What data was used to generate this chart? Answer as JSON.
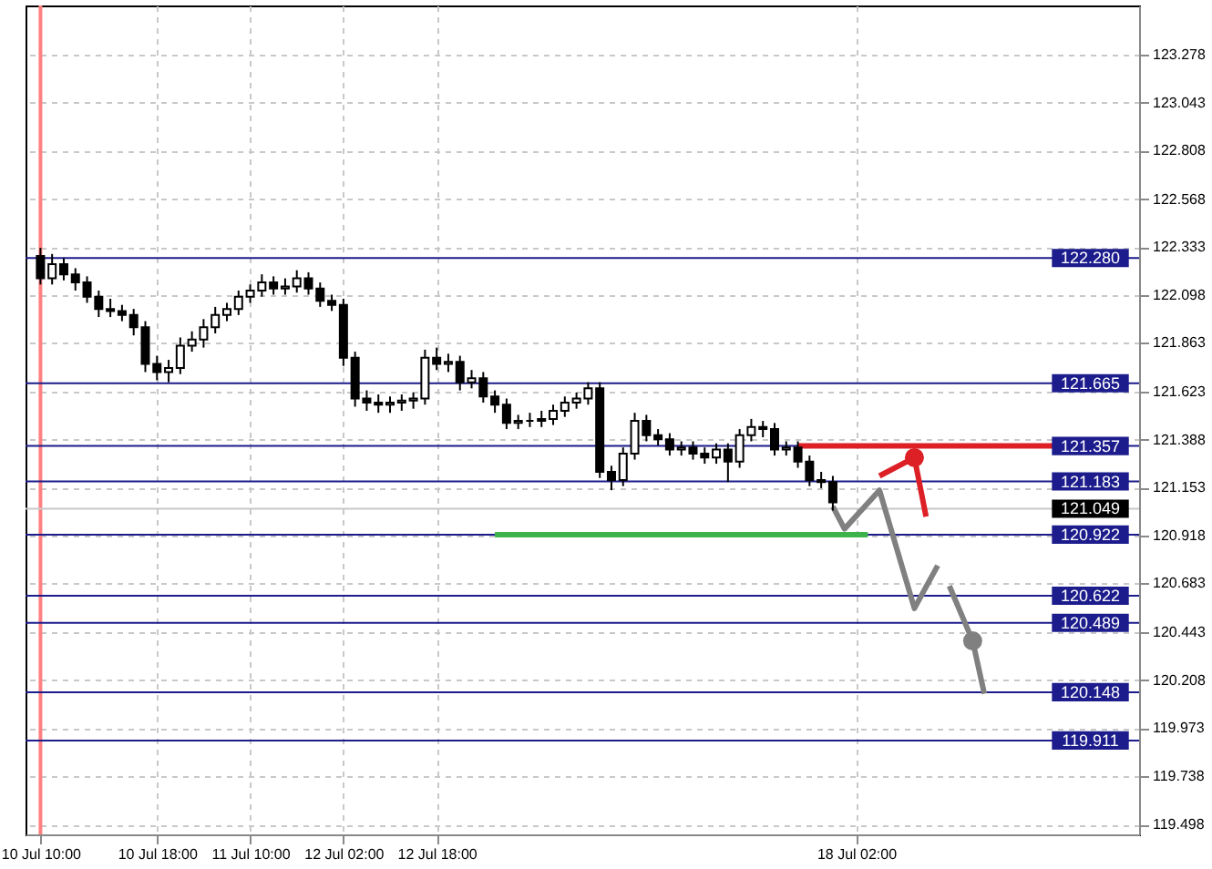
{
  "chart_data": {
    "type": "candlestick",
    "color": "#000000",
    "categories": [
      "10 Jul 10:00",
      null,
      null,
      null,
      null,
      null,
      null,
      null,
      null,
      null,
      "10 Jul 18:00",
      null,
      null,
      null,
      null,
      null,
      null,
      null,
      "11 Jul 10:00",
      null,
      null,
      null,
      null,
      null,
      null,
      null,
      "12 Jul 02:00",
      null,
      null,
      null,
      null,
      null,
      null,
      null,
      "12 Jul 18:00",
      null,
      null,
      null,
      null,
      null,
      null,
      null,
      null,
      null,
      null,
      null,
      null,
      null,
      null,
      null,
      null,
      null,
      null,
      null,
      null,
      null,
      null,
      null,
      null,
      null,
      null,
      null,
      null,
      null,
      null,
      null,
      null,
      null,
      null,
      null,
      "18 Jul 02:00",
      null,
      null,
      null,
      null,
      null,
      null,
      null,
      null,
      null,
      null,
      null,
      null,
      null,
      null,
      null,
      null,
      null,
      null,
      null,
      null,
      null,
      null,
      null
    ],
    "ohlc": [
      [
        122.29,
        122.33,
        122.15,
        122.18
      ],
      [
        122.18,
        122.3,
        122.15,
        122.25
      ],
      [
        122.25,
        122.28,
        122.17,
        122.2
      ],
      [
        122.2,
        122.23,
        122.12,
        122.16
      ],
      [
        122.16,
        122.19,
        122.06,
        122.09
      ],
      [
        122.09,
        122.12,
        121.99,
        122.03
      ],
      [
        122.03,
        122.08,
        121.99,
        122.02
      ],
      [
        122.02,
        122.05,
        121.97,
        122.0
      ],
      [
        122.0,
        122.03,
        121.9,
        121.94
      ],
      [
        121.94,
        121.97,
        121.72,
        121.76
      ],
      [
        121.76,
        121.8,
        121.68,
        121.72
      ],
      [
        121.72,
        121.78,
        121.67,
        121.74
      ],
      [
        121.74,
        121.89,
        121.71,
        121.85
      ],
      [
        121.85,
        121.92,
        121.82,
        121.88
      ],
      [
        121.88,
        121.98,
        121.84,
        121.94
      ],
      [
        121.94,
        122.04,
        121.91,
        122.0
      ],
      [
        122.0,
        122.06,
        121.97,
        122.03
      ],
      [
        122.03,
        122.12,
        122.0,
        122.09
      ],
      [
        122.09,
        122.15,
        122.06,
        122.12
      ],
      [
        122.12,
        122.2,
        122.09,
        122.16
      ],
      [
        122.16,
        122.19,
        122.1,
        122.13
      ],
      [
        122.13,
        122.18,
        122.1,
        122.14
      ],
      [
        122.14,
        122.22,
        122.11,
        122.18
      ],
      [
        122.18,
        122.21,
        122.1,
        122.13
      ],
      [
        122.13,
        122.16,
        122.04,
        122.07
      ],
      [
        122.07,
        122.1,
        122.02,
        122.05
      ],
      [
        122.05,
        122.08,
        121.75,
        121.79
      ],
      [
        121.79,
        121.82,
        121.55,
        121.59
      ],
      [
        121.59,
        121.63,
        121.53,
        121.57
      ],
      [
        121.57,
        121.61,
        121.52,
        121.56
      ],
      [
        121.56,
        121.6,
        121.52,
        121.57
      ],
      [
        121.57,
        121.61,
        121.53,
        121.58
      ],
      [
        121.58,
        121.62,
        121.54,
        121.59
      ],
      [
        121.59,
        121.83,
        121.56,
        121.79
      ],
      [
        121.79,
        121.84,
        121.73,
        121.76
      ],
      [
        121.76,
        121.81,
        121.72,
        121.77
      ],
      [
        121.77,
        121.8,
        121.63,
        121.67
      ],
      [
        121.67,
        121.73,
        121.64,
        121.69
      ],
      [
        121.69,
        121.72,
        121.57,
        121.6
      ],
      [
        121.6,
        121.63,
        121.52,
        121.56
      ],
      [
        121.56,
        121.59,
        121.44,
        121.47
      ],
      [
        121.47,
        121.51,
        121.44,
        121.48
      ],
      [
        121.48,
        121.52,
        121.45,
        121.48
      ],
      [
        121.48,
        121.53,
        121.45,
        121.49
      ],
      [
        121.49,
        121.56,
        121.46,
        121.53
      ],
      [
        121.53,
        121.6,
        121.5,
        121.57
      ],
      [
        121.57,
        121.62,
        121.54,
        121.59
      ],
      [
        121.59,
        121.67,
        121.56,
        121.64
      ],
      [
        121.64,
        121.67,
        121.2,
        121.23
      ],
      [
        121.23,
        121.26,
        121.14,
        121.19
      ],
      [
        121.19,
        121.35,
        121.16,
        121.32
      ],
      [
        121.32,
        121.52,
        121.29,
        121.48
      ],
      [
        121.48,
        121.51,
        121.38,
        121.41
      ],
      [
        121.41,
        121.44,
        121.36,
        121.39
      ],
      [
        121.39,
        121.42,
        121.31,
        121.34
      ],
      [
        121.34,
        121.38,
        121.31,
        121.35
      ],
      [
        121.35,
        121.38,
        121.29,
        121.32
      ],
      [
        121.32,
        121.35,
        121.27,
        121.3
      ],
      [
        121.3,
        121.37,
        121.27,
        121.34
      ],
      [
        121.34,
        121.37,
        121.18,
        121.28
      ],
      [
        121.28,
        121.44,
        121.25,
        121.41
      ],
      [
        121.41,
        121.49,
        121.38,
        121.45
      ],
      [
        121.45,
        121.48,
        121.4,
        121.44
      ],
      [
        121.44,
        121.47,
        121.31,
        121.34
      ],
      [
        121.34,
        121.38,
        121.31,
        121.35
      ],
      [
        121.35,
        121.38,
        121.25,
        121.28
      ],
      [
        121.28,
        121.31,
        121.16,
        121.19
      ],
      [
        121.19,
        121.23,
        121.15,
        121.18
      ],
      [
        121.18,
        121.21,
        121.04,
        121.08
      ],
      null,
      null,
      null,
      null,
      null,
      null,
      null,
      null,
      null,
      null,
      null,
      null,
      null,
      null,
      null,
      null,
      null,
      null,
      null,
      null,
      null,
      null,
      null,
      null,
      null
    ],
    "series": [
      {
        "type": "line",
        "color": "#dd1f26",
        "values": [
          null,
          null,
          null,
          null,
          null,
          null,
          null,
          null,
          null,
          null,
          null,
          null,
          null,
          null,
          null,
          null,
          null,
          null,
          null,
          null,
          null,
          null,
          null,
          null,
          null,
          null,
          null,
          null,
          null,
          null,
          null,
          null,
          null,
          null,
          null,
          null,
          null,
          null,
          null,
          null,
          null,
          null,
          null,
          null,
          null,
          null,
          null,
          null,
          null,
          null,
          null,
          null,
          null,
          null,
          null,
          null,
          null,
          null,
          null,
          null,
          null,
          null,
          null,
          null,
          null,
          121.357,
          121.357,
          121.357,
          121.357,
          121.357,
          121.357,
          121.357,
          121.357,
          121.357,
          121.357,
          121.357,
          121.357,
          121.357,
          121.357,
          121.357,
          121.357,
          121.357,
          121.357,
          121.357,
          121.357,
          121.357,
          121.357,
          121.357,
          null,
          null,
          null,
          null,
          null,
          null
        ]
      },
      {
        "type": "line",
        "color": "#3cb44b",
        "values": [
          null,
          null,
          null,
          null,
          null,
          null,
          null,
          null,
          null,
          null,
          null,
          null,
          null,
          null,
          null,
          null,
          null,
          null,
          null,
          null,
          null,
          null,
          null,
          null,
          null,
          null,
          null,
          null,
          null,
          null,
          null,
          null,
          null,
          null,
          null,
          null,
          null,
          null,
          null,
          120.922,
          120.922,
          120.922,
          120.922,
          120.922,
          120.922,
          120.922,
          120.922,
          120.922,
          120.922,
          120.922,
          120.922,
          120.922,
          120.922,
          120.922,
          120.922,
          120.922,
          120.922,
          120.922,
          120.922,
          120.922,
          120.922,
          120.922,
          120.922,
          120.922,
          120.922,
          120.922,
          120.922,
          120.922,
          120.922,
          120.922,
          120.922,
          120.922,
          null,
          null,
          null,
          null,
          null,
          null,
          null,
          null,
          null,
          null,
          null,
          null,
          null,
          null,
          null,
          null,
          null,
          null,
          null,
          null,
          null,
          null
        ]
      },
      {
        "type": "line",
        "color": "#808080",
        "values": [
          null,
          null,
          null,
          null,
          null,
          null,
          null,
          null,
          null,
          null,
          null,
          null,
          null,
          null,
          null,
          null,
          null,
          null,
          null,
          null,
          null,
          null,
          null,
          null,
          null,
          null,
          null,
          null,
          null,
          null,
          null,
          null,
          null,
          null,
          null,
          null,
          null,
          null,
          null,
          null,
          null,
          null,
          null,
          null,
          null,
          null,
          null,
          null,
          null,
          null,
          null,
          null,
          null,
          null,
          null,
          null,
          null,
          null,
          null,
          null,
          null,
          null,
          null,
          null,
          null,
          null,
          null,
          null,
          121.06,
          120.95,
          null,
          null,
          121.14,
          null,
          null,
          120.56,
          null,
          120.77,
          null,
          null,
          null,
          null,
          null,
          null,
          null,
          null,
          null,
          null,
          null,
          null,
          null,
          null,
          null,
          null
        ]
      },
      {
        "type": "line",
        "color": "#808080",
        "values": [
          null,
          null,
          null,
          null,
          null,
          null,
          null,
          null,
          null,
          null,
          null,
          null,
          null,
          null,
          null,
          null,
          null,
          null,
          null,
          null,
          null,
          null,
          null,
          null,
          null,
          null,
          null,
          null,
          null,
          null,
          null,
          null,
          null,
          null,
          null,
          null,
          null,
          null,
          null,
          null,
          null,
          null,
          null,
          null,
          null,
          null,
          null,
          null,
          null,
          null,
          null,
          null,
          null,
          null,
          null,
          null,
          null,
          null,
          null,
          null,
          null,
          null,
          null,
          null,
          null,
          null,
          null,
          null,
          null,
          null,
          null,
          null,
          null,
          null,
          null,
          null,
          null,
          null,
          120.67,
          null,
          120.4,
          120.14,
          null,
          null,
          null,
          null,
          null,
          null,
          null,
          null,
          null,
          null,
          null,
          null
        ]
      },
      {
        "type": "scatter",
        "color": "#808080",
        "values": [
          null,
          null,
          null,
          null,
          null,
          null,
          null,
          null,
          null,
          null,
          null,
          null,
          null,
          null,
          null,
          null,
          null,
          null,
          null,
          null,
          null,
          null,
          null,
          null,
          null,
          null,
          null,
          null,
          null,
          null,
          null,
          null,
          null,
          null,
          null,
          null,
          null,
          null,
          null,
          null,
          null,
          null,
          null,
          null,
          null,
          null,
          null,
          null,
          null,
          null,
          null,
          null,
          null,
          null,
          null,
          null,
          null,
          null,
          null,
          null,
          null,
          null,
          null,
          null,
          null,
          null,
          null,
          null,
          null,
          null,
          null,
          null,
          null,
          null,
          null,
          null,
          null,
          null,
          null,
          null,
          120.4,
          null,
          null,
          null,
          null,
          null,
          null,
          null,
          null,
          null,
          null,
          null,
          null,
          null
        ]
      },
      {
        "type": "line",
        "color": "#dd1f26",
        "values": [
          null,
          null,
          null,
          null,
          null,
          null,
          null,
          null,
          null,
          null,
          null,
          null,
          null,
          null,
          null,
          null,
          null,
          null,
          null,
          null,
          null,
          null,
          null,
          null,
          null,
          null,
          null,
          null,
          null,
          null,
          null,
          null,
          null,
          null,
          null,
          null,
          null,
          null,
          null,
          null,
          null,
          null,
          null,
          null,
          null,
          null,
          null,
          null,
          null,
          null,
          null,
          null,
          null,
          null,
          null,
          null,
          null,
          null,
          null,
          null,
          null,
          null,
          null,
          null,
          null,
          null,
          null,
          null,
          null,
          null,
          null,
          null,
          121.21,
          null,
          null,
          121.3,
          121.01,
          null,
          null,
          null,
          null,
          null,
          null,
          null,
          null,
          null,
          null,
          null,
          null,
          null,
          null,
          null,
          null,
          null
        ]
      },
      {
        "type": "scatter",
        "color": "#dd1f26",
        "values": [
          null,
          null,
          null,
          null,
          null,
          null,
          null,
          null,
          null,
          null,
          null,
          null,
          null,
          null,
          null,
          null,
          null,
          null,
          null,
          null,
          null,
          null,
          null,
          null,
          null,
          null,
          null,
          null,
          null,
          null,
          null,
          null,
          null,
          null,
          null,
          null,
          null,
          null,
          null,
          null,
          null,
          null,
          null,
          null,
          null,
          null,
          null,
          null,
          null,
          null,
          null,
          null,
          null,
          null,
          null,
          null,
          null,
          null,
          null,
          null,
          null,
          null,
          null,
          null,
          null,
          null,
          null,
          null,
          null,
          null,
          null,
          null,
          null,
          null,
          null,
          121.3,
          null,
          null,
          null,
          null,
          null,
          null,
          null,
          null,
          null,
          null,
          null,
          null,
          null,
          null,
          null,
          null,
          null,
          null
        ]
      }
    ],
    "ref_lines": [
      {
        "axis": "x",
        "value": "10 Jul 10:00",
        "color": "#ff8080"
      },
      {
        "axis": "y",
        "value": 122.28,
        "label": "122.280",
        "color": "#1c1c8c"
      },
      {
        "axis": "y",
        "value": 121.665,
        "label": "121.665",
        "color": "#1c1c8c"
      },
      {
        "axis": "y",
        "value": 121.357,
        "label": "121.357",
        "color": "#1c1c8c"
      },
      {
        "axis": "y",
        "value": 121.183,
        "label": "121.183",
        "color": "#1c1c8c"
      },
      {
        "axis": "y",
        "value": 121.049,
        "label": "121.049",
        "color": "#c8c8c8"
      },
      {
        "axis": "y",
        "value": 120.922,
        "label": "120.922",
        "color": "#1c1c8c"
      },
      {
        "axis": "y",
        "value": 120.622,
        "label": "120.622",
        "color": "#1c1c8c"
      },
      {
        "axis": "y",
        "value": 120.489,
        "label": "120.489",
        "color": "#1c1c8c"
      },
      {
        "axis": "y",
        "value": 120.148,
        "label": "120.148",
        "color": "#1c1c8c"
      },
      {
        "axis": "y",
        "value": 119.911,
        "label": "119.911",
        "color": "#1c1c8c"
      }
    ],
    "ylim": [
      119.45,
      123.52
    ],
    "yticks": [
      123.278,
      123.043,
      122.808,
      122.568,
      122.333,
      122.098,
      121.863,
      121.623,
      121.388,
      121.153,
      120.918,
      120.683,
      120.443,
      120.208,
      119.973,
      119.738,
      119.498
    ],
    "grid": true,
    "line_style": "solid"
  }
}
